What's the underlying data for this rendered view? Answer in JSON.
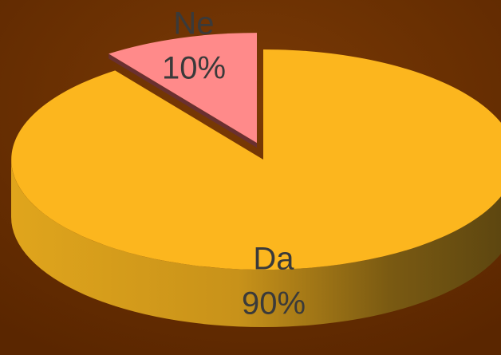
{
  "chart_data": {
    "type": "pie3d",
    "categories": [
      "Da",
      "Ne"
    ],
    "values": [
      90,
      10
    ],
    "value_labels": [
      "90%",
      "10%"
    ],
    "colors": [
      "#fcb61e",
      "#ff8a8a"
    ],
    "exploded": [
      false,
      true
    ]
  }
}
